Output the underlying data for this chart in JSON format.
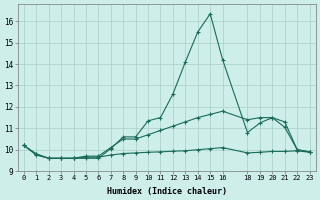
{
  "xlabel": "Humidex (Indice chaleur)",
  "background_color": "#ceeee9",
  "grid_color": "#aed4cc",
  "line_color": "#1a6b5a",
  "xlim": [
    -0.5,
    23.5
  ],
  "ylim": [
    9,
    16.8
  ],
  "yticks": [
    9,
    10,
    11,
    12,
    13,
    14,
    15,
    16
  ],
  "xtick_positions": [
    0,
    1,
    2,
    3,
    4,
    5,
    6,
    7,
    8,
    9,
    10,
    11,
    12,
    13,
    14,
    15,
    16,
    18,
    19,
    20,
    21,
    22,
    23
  ],
  "xtick_labels": [
    "0",
    "1",
    "2",
    "3",
    "4",
    "5",
    "6",
    "7",
    "8",
    "9",
    "10",
    "11",
    "12",
    "13",
    "14",
    "15",
    "16",
    "18",
    "19",
    "20",
    "21",
    "22",
    "23"
  ],
  "s1_x": [
    0,
    1,
    2,
    3,
    4,
    5,
    6,
    7,
    8,
    9,
    10,
    11,
    12,
    13,
    14,
    15,
    16,
    18,
    19,
    20,
    21,
    22,
    23
  ],
  "s1_y": [
    10.2,
    9.8,
    9.6,
    9.6,
    9.6,
    9.6,
    9.6,
    10.05,
    10.6,
    10.6,
    11.35,
    11.5,
    12.6,
    14.1,
    15.5,
    16.35,
    14.2,
    10.8,
    11.25,
    11.5,
    11.05,
    10.0,
    9.9
  ],
  "s2_x": [
    0,
    1,
    2,
    3,
    4,
    5,
    6,
    7,
    8,
    9,
    10,
    11,
    12,
    13,
    14,
    15,
    16,
    18,
    19,
    20,
    21,
    22,
    23
  ],
  "s2_y": [
    10.2,
    9.8,
    9.6,
    9.6,
    9.6,
    9.7,
    9.7,
    10.1,
    10.5,
    10.5,
    10.7,
    10.9,
    11.1,
    11.3,
    11.5,
    11.65,
    11.8,
    11.4,
    11.5,
    11.5,
    11.3,
    10.0,
    9.9
  ],
  "s3_x": [
    0,
    1,
    2,
    3,
    4,
    5,
    6,
    7,
    8,
    9,
    10,
    11,
    12,
    13,
    14,
    15,
    16,
    18,
    19,
    20,
    21,
    22,
    23
  ],
  "s3_y": [
    10.2,
    9.75,
    9.6,
    9.6,
    9.6,
    9.65,
    9.65,
    9.75,
    9.82,
    9.85,
    9.88,
    9.9,
    9.93,
    9.95,
    10.0,
    10.05,
    10.1,
    9.85,
    9.88,
    9.92,
    9.92,
    9.95,
    9.88
  ]
}
